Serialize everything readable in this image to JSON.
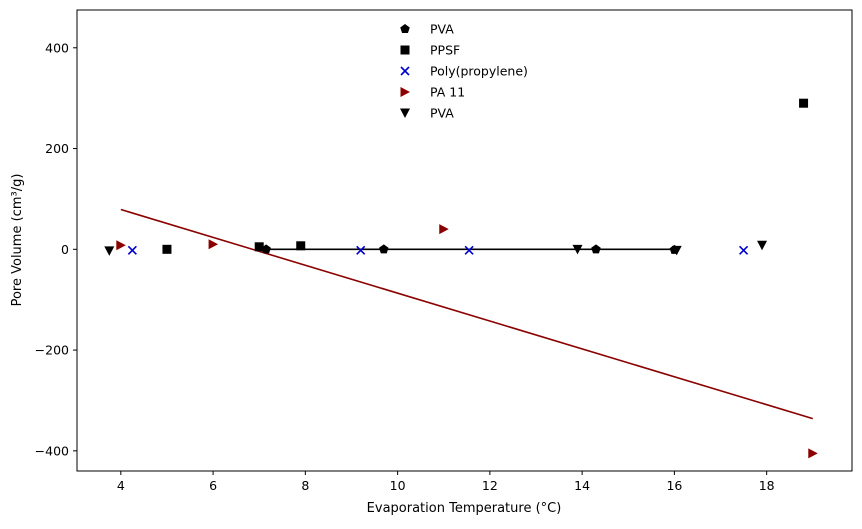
{
  "chart_data": {
    "type": "scatter",
    "title": "",
    "xlabel": "Evaporation Temperature (°C)",
    "ylabel": "Pore Volume (cm³/g)",
    "xlim": [
      3.05,
      19.85
    ],
    "ylim": [
      -440,
      475
    ],
    "xticks": [
      4,
      6,
      8,
      10,
      12,
      14,
      16,
      18
    ],
    "yticks": [
      -400,
      -200,
      0,
      200,
      400
    ],
    "ytick_labels": [
      "−400",
      "−200",
      "0",
      "200",
      "400"
    ],
    "grid": false,
    "legend": {
      "position": "upper-center"
    },
    "series": [
      {
        "name": "PVA",
        "marker": "pentagon",
        "color": "#000000",
        "points": [
          [
            7.15,
            0
          ],
          [
            9.7,
            0
          ],
          [
            14.3,
            0
          ],
          [
            16.0,
            -1
          ]
        ]
      },
      {
        "name": "PPSF",
        "marker": "square",
        "color": "#000000",
        "points": [
          [
            5.0,
            0
          ],
          [
            7.0,
            5
          ],
          [
            7.9,
            7
          ],
          [
            18.8,
            290
          ]
        ]
      },
      {
        "name": "Poly(propylene)",
        "marker": "x",
        "color": "#0000cc",
        "points": [
          [
            4.25,
            -2
          ],
          [
            9.2,
            -2
          ],
          [
            11.55,
            -2
          ],
          [
            17.5,
            -2
          ]
        ]
      },
      {
        "name": "PA 11",
        "marker": "triangle-right",
        "color": "#8b0000",
        "points": [
          [
            4.0,
            8
          ],
          [
            6.0,
            10
          ],
          [
            11.0,
            40
          ],
          [
            19.0,
            -405
          ]
        ]
      },
      {
        "name": "PVA",
        "marker": "triangle-down",
        "color": "#000000",
        "points": [
          [
            3.75,
            -3
          ],
          [
            13.9,
            0
          ],
          [
            16.05,
            -2
          ],
          [
            17.9,
            8
          ]
        ]
      }
    ],
    "fit_lines": [
      {
        "color": "#000000",
        "points": [
          [
            7.15,
            0
          ],
          [
            16.0,
            0
          ]
        ]
      },
      {
        "color": "#8b0000",
        "points": [
          [
            4.0,
            79
          ],
          [
            19.0,
            -336
          ]
        ]
      }
    ]
  }
}
